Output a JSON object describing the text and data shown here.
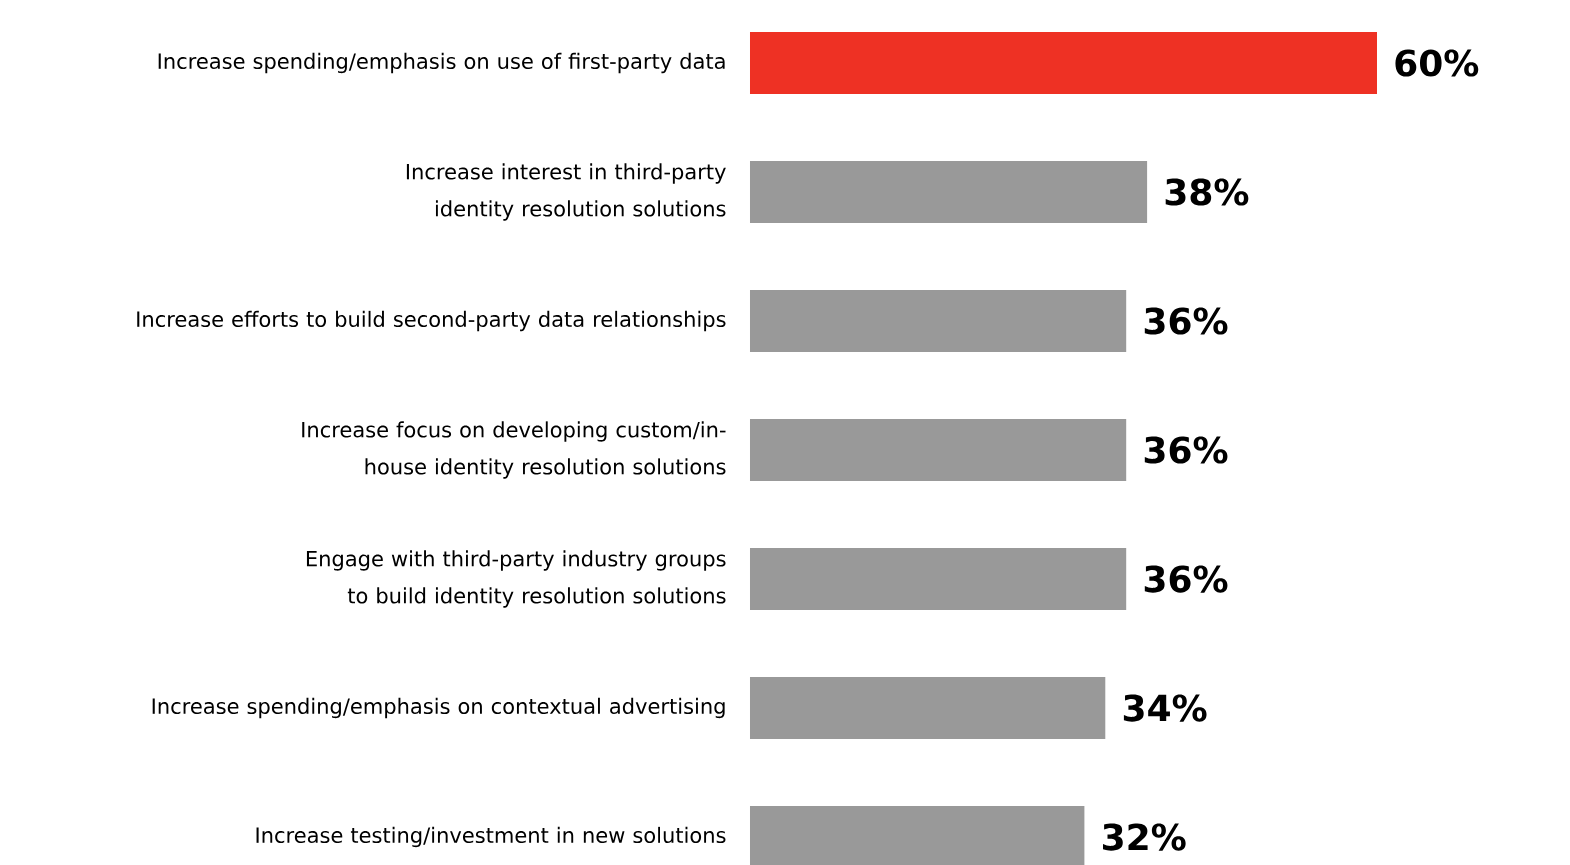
{
  "chart_data": {
    "type": "bar",
    "orientation": "horizontal",
    "categories": [
      "Increase spending/emphasis on use of first-party data",
      "Increase interest in third-party identity resolution solutions",
      "Increase efforts to build second-party data relationships",
      "Increase focus on developing custom/in-house identity resolution solutions",
      "Engage with third-party industry groups to build identity resolution solutions",
      "Increase spending/emphasis on contextual advertising",
      "Increase testing/investment in new solutions"
    ],
    "values": [
      60,
      38,
      36,
      36,
      36,
      34,
      32
    ],
    "colors": [
      "#ee3124",
      "#999999",
      "#999999",
      "#999999",
      "#999999",
      "#999999",
      "#999999"
    ],
    "value_labels": [
      "60%",
      "38%",
      "36%",
      "36%",
      "36%",
      "34%",
      "32%"
    ]
  }
}
